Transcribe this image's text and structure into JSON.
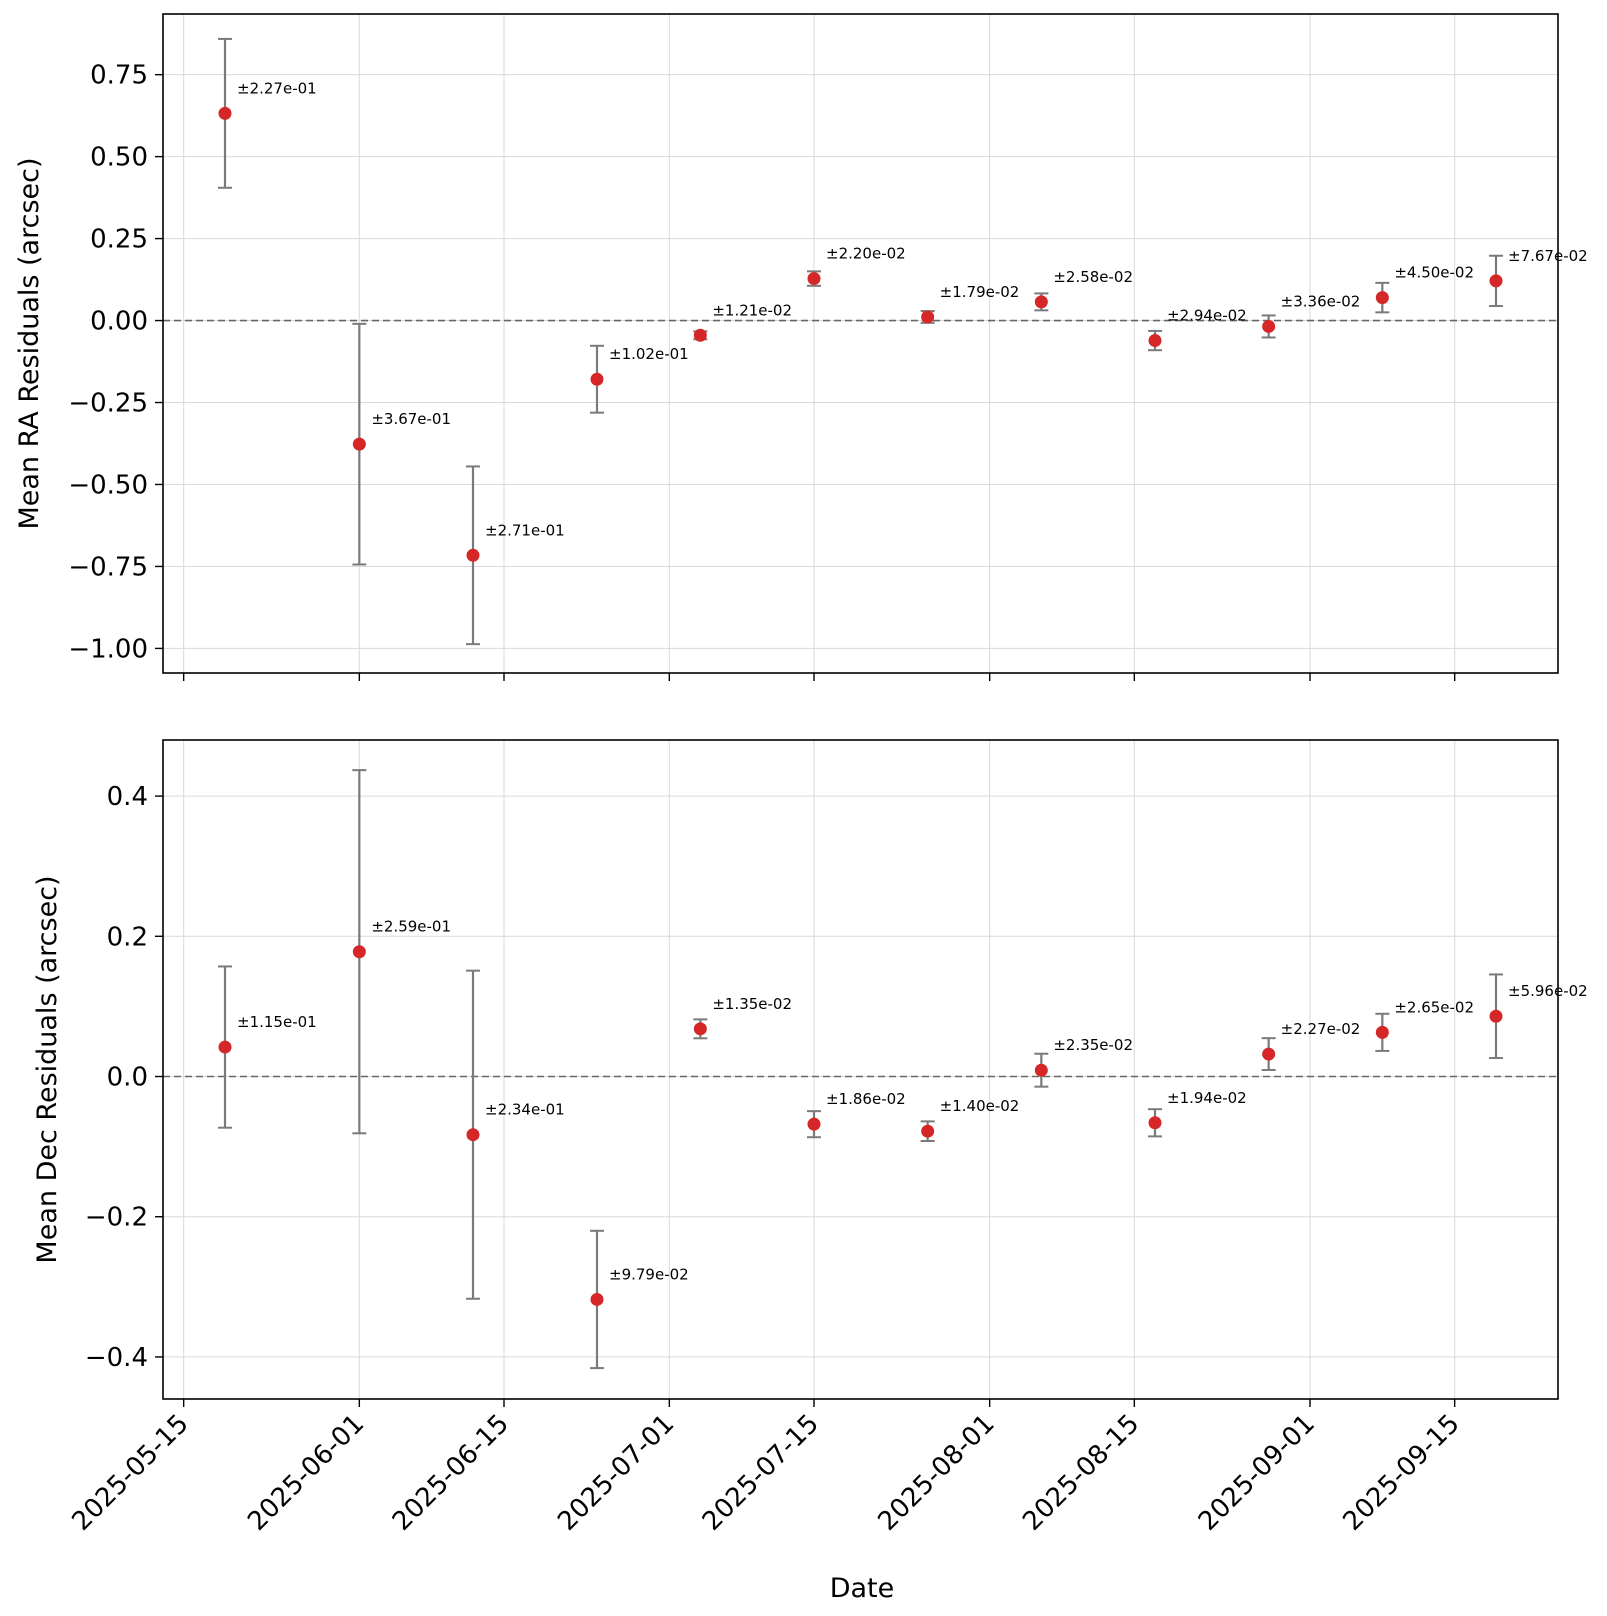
{
  "chart_data": {
    "type": "scatter",
    "shared_x": {
      "label": "Date",
      "tick_labels": [
        "2025-05-15",
        "2025-06-01",
        "2025-06-15",
        "2025-07-01",
        "2025-07-15",
        "2025-08-01",
        "2025-08-15",
        "2025-09-01",
        "2025-09-15"
      ],
      "range": [
        "2025-05-13",
        "2025-09-25"
      ],
      "grid": true
    },
    "x": [
      "2025-05-19",
      "2025-06-01",
      "2025-06-12",
      "2025-06-24",
      "2025-07-04",
      "2025-07-15",
      "2025-07-26",
      "2025-08-06",
      "2025-08-17",
      "2025-08-28",
      "2025-09-08",
      "2025-09-19"
    ],
    "colors": {
      "marker": "#d62728",
      "errorbar": "#7a7a7a",
      "zero_line": "#666666",
      "grid": "#d9d9d9"
    },
    "panels": [
      {
        "id": "ra",
        "ylabel": "Mean RA Residuals (arcsec)",
        "ylim": [
          -1.075,
          0.935
        ],
        "yticks": [
          0.75,
          0.5,
          0.25,
          0.0,
          -0.25,
          -0.5,
          -0.75,
          -1.0
        ],
        "ytick_labels": [
          "0.75",
          "0.50",
          "0.25",
          "0.00",
          "−0.25",
          "−0.50",
          "−0.75",
          "−1.00"
        ],
        "reference_line": 0,
        "grid": true,
        "y": [
          0.632,
          -0.377,
          -0.716,
          -0.179,
          -0.045,
          0.128,
          0.011,
          0.057,
          -0.061,
          -0.018,
          0.07,
          0.121
        ],
        "yerr": [
          0.227,
          0.367,
          0.271,
          0.102,
          0.0121,
          0.022,
          0.0179,
          0.0258,
          0.0294,
          0.0336,
          0.045,
          0.0767
        ],
        "yerr_labels": [
          "±2.27e-01",
          "±3.67e-01",
          "±2.71e-01",
          "±1.02e-01",
          "±1.21e-02",
          "±2.20e-02",
          "±1.79e-02",
          "±2.58e-02",
          "±2.94e-02",
          "±3.36e-02",
          "±4.50e-02",
          "±7.67e-02"
        ]
      },
      {
        "id": "dec",
        "ylabel": "Mean Dec Residuals (arcsec)",
        "ylim": [
          -0.46,
          0.48
        ],
        "yticks": [
          0.4,
          0.2,
          0.0,
          -0.2,
          -0.4
        ],
        "ytick_labels": [
          "0.4",
          "0.2",
          "0.0",
          "−0.2",
          "−0.4"
        ],
        "reference_line": 0,
        "grid": true,
        "y": [
          0.042,
          0.178,
          -0.083,
          -0.318,
          0.068,
          -0.068,
          -0.078,
          0.009,
          -0.066,
          0.032,
          0.063,
          0.086
        ],
        "yerr": [
          0.115,
          0.259,
          0.234,
          0.0979,
          0.0135,
          0.0186,
          0.014,
          0.0235,
          0.0194,
          0.0227,
          0.0265,
          0.0596
        ],
        "yerr_labels": [
          "±1.15e-01",
          "±2.59e-01",
          "±2.34e-01",
          "±9.79e-02",
          "±1.35e-02",
          "±1.86e-02",
          "±1.40e-02",
          "±2.35e-02",
          "±1.94e-02",
          "±2.27e-02",
          "±2.65e-02",
          "±5.96e-02"
        ]
      }
    ]
  }
}
